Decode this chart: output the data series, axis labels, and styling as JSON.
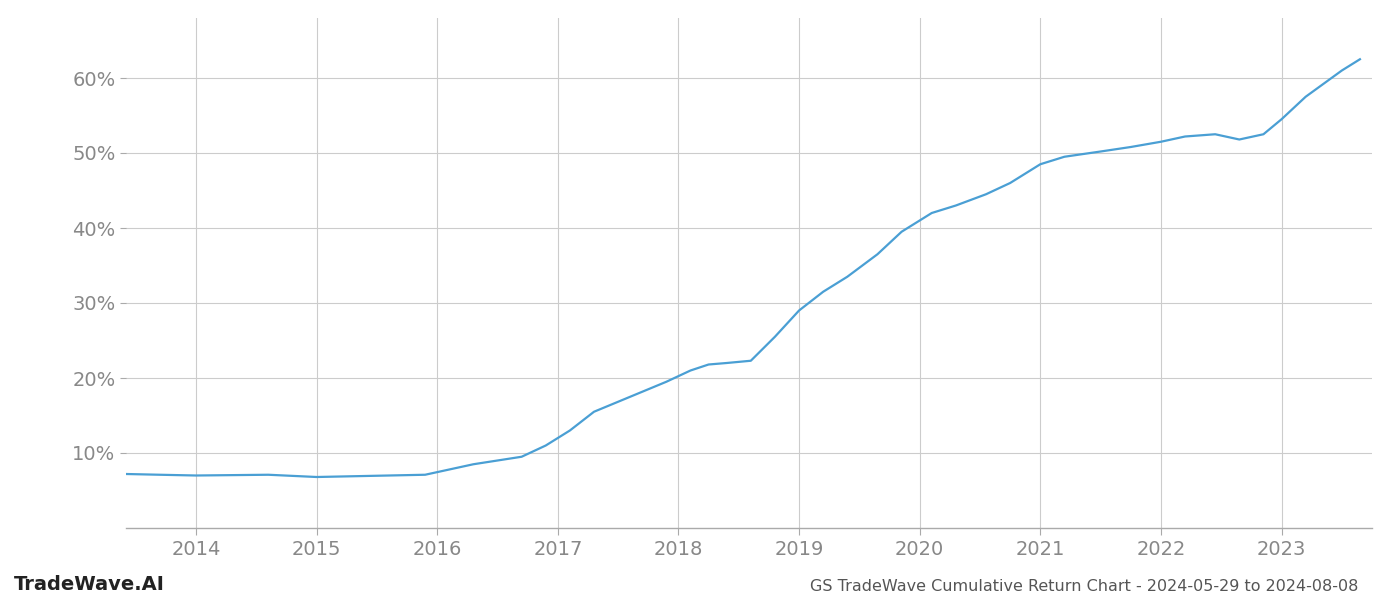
{
  "title": "GS TradeWave Cumulative Return Chart - 2024-05-29 to 2024-08-08",
  "watermark": "TradeWave.AI",
  "line_color": "#4a9fd4",
  "background_color": "#ffffff",
  "grid_color": "#cccccc",
  "x_values": [
    2013.42,
    2013.7,
    2014.0,
    2014.3,
    2014.6,
    2015.0,
    2015.3,
    2015.6,
    2015.9,
    2016.1,
    2016.3,
    2016.5,
    2016.7,
    2016.9,
    2017.1,
    2017.3,
    2017.6,
    2017.9,
    2018.1,
    2018.25,
    2018.4,
    2018.6,
    2018.8,
    2019.0,
    2019.2,
    2019.4,
    2019.65,
    2019.85,
    2020.1,
    2020.3,
    2020.55,
    2020.75,
    2021.0,
    2021.2,
    2021.5,
    2021.75,
    2022.0,
    2022.2,
    2022.45,
    2022.65,
    2022.85,
    2023.0,
    2023.2,
    2023.5,
    2023.65
  ],
  "y_values": [
    7.2,
    7.1,
    7.0,
    7.05,
    7.1,
    6.8,
    6.9,
    7.0,
    7.1,
    7.8,
    8.5,
    9.0,
    9.5,
    11.0,
    13.0,
    15.5,
    17.5,
    19.5,
    21.0,
    21.8,
    22.0,
    22.3,
    25.5,
    29.0,
    31.5,
    33.5,
    36.5,
    39.5,
    42.0,
    43.0,
    44.5,
    46.0,
    48.5,
    49.5,
    50.2,
    50.8,
    51.5,
    52.2,
    52.5,
    51.8,
    52.5,
    54.5,
    57.5,
    61.0,
    62.5
  ],
  "xlim": [
    2013.42,
    2023.75
  ],
  "ylim": [
    0,
    68
  ],
  "yticks": [
    10,
    20,
    30,
    40,
    50,
    60
  ],
  "xticks": [
    2014,
    2015,
    2016,
    2017,
    2018,
    2019,
    2020,
    2021,
    2022,
    2023
  ],
  "line_width": 1.6,
  "title_fontsize": 11.5,
  "tick_fontsize": 14,
  "watermark_fontsize": 14
}
